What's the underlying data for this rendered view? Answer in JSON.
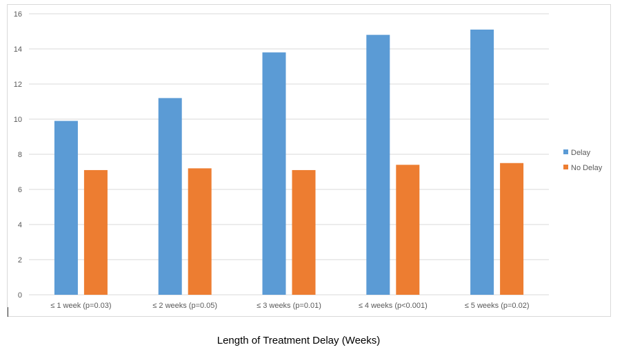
{
  "chart_data": {
    "type": "bar",
    "categories": [
      "≤ 1 week (p=0.03)",
      "≤ 2 weeks (p=0.05)",
      "≤ 3 weeks (p=0.01)",
      "≤ 4 weeks (p<0.001)",
      "≤ 5 weeks (p=0.02)"
    ],
    "series": [
      {
        "name": "Delay",
        "color": "#5b9bd5",
        "values": [
          9.9,
          11.2,
          13.8,
          14.8,
          15.1
        ]
      },
      {
        "name": "No Delay",
        "color": "#ed7d31",
        "values": [
          7.1,
          7.2,
          7.1,
          7.4,
          7.5
        ]
      }
    ],
    "title": "",
    "xlabel": "Length of Treatment Delay (Weeks)",
    "ylabel": "",
    "ylim": [
      0,
      16
    ],
    "yticks": [
      "0",
      "2",
      "4",
      "6",
      "8",
      "10",
      "12",
      "14",
      "16"
    ],
    "grid": true,
    "legend_position": "right"
  }
}
